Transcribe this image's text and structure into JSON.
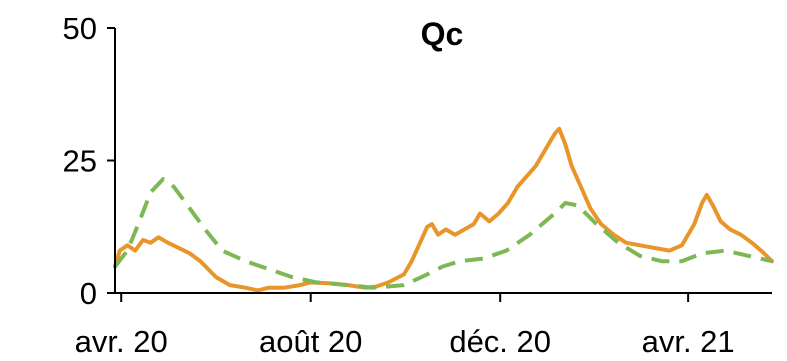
{
  "chart_data": {
    "type": "line",
    "title": "Qc",
    "xlabel": "",
    "ylabel": "",
    "x_ticks": [
      "avr. 20",
      "août 20",
      "déc. 20",
      "avr. 21"
    ],
    "x_tick_dates": [
      "2020-04-01",
      "2020-08-01",
      "2020-12-01",
      "2021-04-01"
    ],
    "x_range": [
      "2020-03-28",
      "2021-05-25"
    ],
    "y_ticks": [
      "0",
      "25",
      "50"
    ],
    "ylim": [
      0,
      50
    ],
    "grid": false,
    "legend": "none",
    "colors": {
      "orange": "#E8952A",
      "green": "#7DB854",
      "axis": "#000000"
    },
    "series": [
      {
        "style": "solid",
        "color": "#E8952A",
        "points": [
          [
            "2020-03-28",
            5.0
          ],
          [
            "2020-03-31",
            8.0
          ],
          [
            "2020-04-05",
            9.0
          ],
          [
            "2020-04-10",
            8.0
          ],
          [
            "2020-04-15",
            10.0
          ],
          [
            "2020-04-20",
            9.5
          ],
          [
            "2020-04-25",
            10.5
          ],
          [
            "2020-05-01",
            9.5
          ],
          [
            "2020-05-08",
            8.5
          ],
          [
            "2020-05-15",
            7.5
          ],
          [
            "2020-05-22",
            6.0
          ],
          [
            "2020-06-01",
            3.0
          ],
          [
            "2020-06-10",
            1.5
          ],
          [
            "2020-06-20",
            1.0
          ],
          [
            "2020-06-28",
            0.5
          ],
          [
            "2020-07-05",
            1.0
          ],
          [
            "2020-07-15",
            1.0
          ],
          [
            "2020-07-25",
            1.5
          ],
          [
            "2020-08-01",
            2.0
          ],
          [
            "2020-08-15",
            1.8
          ],
          [
            "2020-08-25",
            1.5
          ],
          [
            "2020-09-05",
            1.0
          ],
          [
            "2020-09-12",
            1.2
          ],
          [
            "2020-09-20",
            2.0
          ],
          [
            "2020-09-30",
            3.5
          ],
          [
            "2020-10-05",
            6.0
          ],
          [
            "2020-10-12",
            10.5
          ],
          [
            "2020-10-15",
            12.5
          ],
          [
            "2020-10-18",
            13.0
          ],
          [
            "2020-10-22",
            11.0
          ],
          [
            "2020-10-27",
            12.0
          ],
          [
            "2020-11-02",
            11.0
          ],
          [
            "2020-11-08",
            12.0
          ],
          [
            "2020-11-14",
            13.0
          ],
          [
            "2020-11-18",
            15.0
          ],
          [
            "2020-11-24",
            13.5
          ],
          [
            "2020-11-30",
            15.0
          ],
          [
            "2020-12-06",
            17.0
          ],
          [
            "2020-12-12",
            20.0
          ],
          [
            "2020-12-18",
            22.0
          ],
          [
            "2020-12-24",
            24.0
          ],
          [
            "2020-12-30",
            27.0
          ],
          [
            "2021-01-05",
            30.0
          ],
          [
            "2021-01-08",
            31.0
          ],
          [
            "2021-01-12",
            28.0
          ],
          [
            "2021-01-16",
            24.0
          ],
          [
            "2021-01-22",
            20.0
          ],
          [
            "2021-01-28",
            16.0
          ],
          [
            "2021-02-04",
            13.0
          ],
          [
            "2021-02-12",
            11.0
          ],
          [
            "2021-02-20",
            9.5
          ],
          [
            "2021-03-01",
            9.0
          ],
          [
            "2021-03-10",
            8.5
          ],
          [
            "2021-03-20",
            8.0
          ],
          [
            "2021-03-28",
            9.0
          ],
          [
            "2021-04-05",
            13.0
          ],
          [
            "2021-04-10",
            17.0
          ],
          [
            "2021-04-13",
            18.5
          ],
          [
            "2021-04-17",
            16.5
          ],
          [
            "2021-04-22",
            13.5
          ],
          [
            "2021-04-28",
            12.0
          ],
          [
            "2021-05-05",
            11.0
          ],
          [
            "2021-05-12",
            9.5
          ],
          [
            "2021-05-18",
            8.0
          ],
          [
            "2021-05-25",
            6.0
          ]
        ]
      },
      {
        "style": "dashed",
        "color": "#7DB854",
        "points": [
          [
            "2020-03-28",
            5.0
          ],
          [
            "2020-04-05",
            8.0
          ],
          [
            "2020-04-12",
            13.0
          ],
          [
            "2020-04-20",
            19.0
          ],
          [
            "2020-04-28",
            21.5
          ],
          [
            "2020-05-05",
            20.0
          ],
          [
            "2020-05-15",
            16.0
          ],
          [
            "2020-05-25",
            12.0
          ],
          [
            "2020-06-05",
            8.0
          ],
          [
            "2020-06-20",
            6.0
          ],
          [
            "2020-07-05",
            4.5
          ],
          [
            "2020-07-20",
            3.0
          ],
          [
            "2020-08-05",
            2.0
          ],
          [
            "2020-08-25",
            1.5
          ],
          [
            "2020-09-10",
            1.0
          ],
          [
            "2020-09-30",
            1.5
          ],
          [
            "2020-10-15",
            3.5
          ],
          [
            "2020-10-25",
            5.0
          ],
          [
            "2020-11-05",
            6.0
          ],
          [
            "2020-11-20",
            6.5
          ],
          [
            "2020-12-05",
            8.0
          ],
          [
            "2020-12-20",
            11.0
          ],
          [
            "2021-01-05",
            15.0
          ],
          [
            "2021-01-12",
            17.0
          ],
          [
            "2021-01-20",
            16.5
          ],
          [
            "2021-02-01",
            13.0
          ],
          [
            "2021-02-15",
            9.5
          ],
          [
            "2021-03-01",
            7.0
          ],
          [
            "2021-03-15",
            6.0
          ],
          [
            "2021-03-28",
            6.0
          ],
          [
            "2021-04-10",
            7.5
          ],
          [
            "2021-04-25",
            8.0
          ],
          [
            "2021-05-10",
            7.0
          ],
          [
            "2021-05-25",
            6.0
          ]
        ]
      }
    ]
  }
}
